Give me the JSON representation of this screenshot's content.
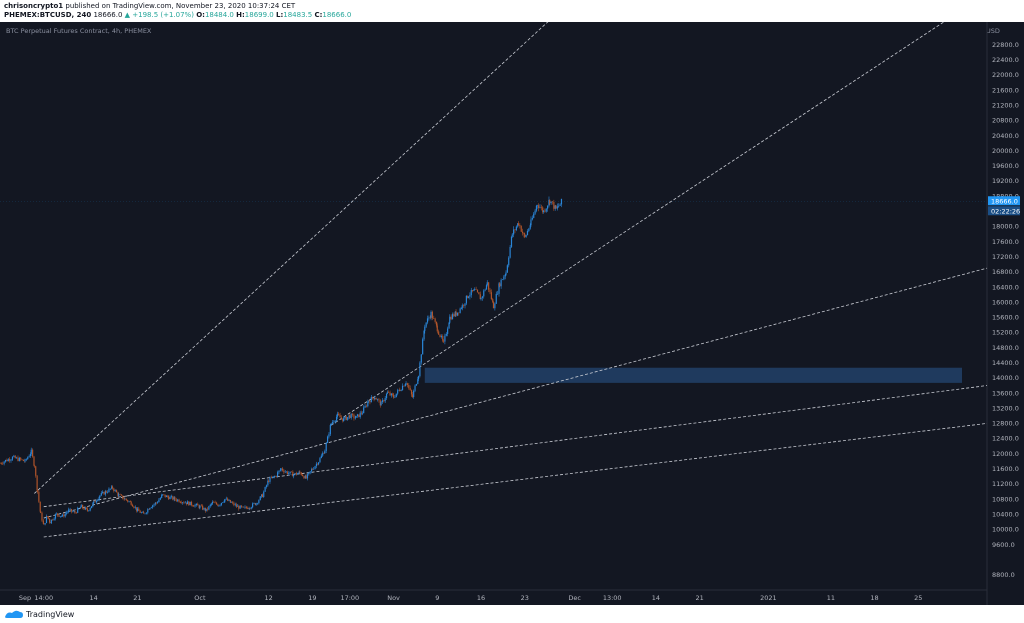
{
  "header": {
    "author": "chrisoncrypto1",
    "published": "published on TradingView.com, November 23, 2020 10:37:24 CET",
    "symbol": "PHEMEX:BTCUSD, 240",
    "last": "18666.0",
    "change": "▲ +198.5 (+1.07%)",
    "open_label": "O:",
    "open": "18484.0",
    "high_label": "H:",
    "high": "18699.0",
    "low_label": "L:",
    "low": "18483.5",
    "close_label": "C:",
    "close": "18666.0"
  },
  "footer": {
    "brand": "TradingView"
  },
  "colors": {
    "background": "#131722",
    "up": "#2a86d8",
    "down": "#b0542a",
    "accent": "#2196f3",
    "zone": "#1f3a5e"
  },
  "chart_data": {
    "type": "candlestick",
    "title": "BTC Perpetual Futures Contract, 4h, PHEMEX",
    "ylabel": "USD",
    "ylim": [
      8400,
      23400
    ],
    "y_ticks": [
      8800,
      9600,
      10000,
      10400,
      10800,
      11200,
      11600,
      12000,
      12400,
      12800,
      13200,
      13600,
      14000,
      14400,
      14800,
      15200,
      15600,
      16000,
      16400,
      16800,
      17200,
      17600,
      18000,
      18400,
      18800,
      19200,
      19600,
      20000,
      20400,
      20800,
      21200,
      21600,
      22000,
      22400,
      22800
    ],
    "x_ticks": [
      {
        "label": "Sep",
        "t": 0
      },
      {
        "label": "14:00",
        "t": 3
      },
      {
        "label": "14",
        "t": 11
      },
      {
        "label": "21",
        "t": 18
      },
      {
        "label": "Oct",
        "t": 28
      },
      {
        "label": "12",
        "t": 39
      },
      {
        "label": "19",
        "t": 46
      },
      {
        "label": "17:00",
        "t": 52
      },
      {
        "label": "Nov",
        "t": 59
      },
      {
        "label": "9",
        "t": 66
      },
      {
        "label": "16",
        "t": 73
      },
      {
        "label": "23",
        "t": 80
      },
      {
        "label": "Dec",
        "t": 88
      },
      {
        "label": "13:00",
        "t": 94
      },
      {
        "label": "14",
        "t": 101
      },
      {
        "label": "21",
        "t": 108
      },
      {
        "label": "2021",
        "t": 119
      },
      {
        "label": "11",
        "t": 129
      },
      {
        "label": "18",
        "t": 136
      },
      {
        "label": "25",
        "t": 143
      }
    ],
    "x_range": [
      -4,
      154
    ],
    "last_price": "18666.0",
    "countdown": "02:22:26",
    "price_path": [
      [
        -4,
        11750
      ],
      [
        -2,
        11900
      ],
      [
        0,
        11800
      ],
      [
        1,
        12050
      ],
      [
        1.5,
        11700
      ],
      [
        2,
        11000
      ],
      [
        2.5,
        10400
      ],
      [
        3,
        10100
      ],
      [
        3.5,
        10350
      ],
      [
        4,
        10200
      ],
      [
        5,
        10400
      ],
      [
        6,
        10350
      ],
      [
        7,
        10500
      ],
      [
        8,
        10450
      ],
      [
        9,
        10600
      ],
      [
        10,
        10500
      ],
      [
        11,
        10700
      ],
      [
        12,
        10900
      ],
      [
        13,
        11000
      ],
      [
        14,
        11100
      ],
      [
        15,
        10900
      ],
      [
        16,
        10800
      ],
      [
        17,
        10700
      ],
      [
        18,
        10500
      ],
      [
        19,
        10400
      ],
      [
        20,
        10600
      ],
      [
        21,
        10700
      ],
      [
        22,
        10900
      ],
      [
        23,
        10850
      ],
      [
        24,
        10800
      ],
      [
        25,
        10750
      ],
      [
        26,
        10700
      ],
      [
        27,
        10650
      ],
      [
        28,
        10600
      ],
      [
        29,
        10500
      ],
      [
        30,
        10700
      ],
      [
        31,
        10650
      ],
      [
        32,
        10800
      ],
      [
        33,
        10700
      ],
      [
        34,
        10600
      ],
      [
        35,
        10550
      ],
      [
        36,
        10600
      ],
      [
        37,
        10700
      ],
      [
        38,
        10900
      ],
      [
        39,
        11300
      ],
      [
        40,
        11400
      ],
      [
        41,
        11600
      ],
      [
        42,
        11500
      ],
      [
        43,
        11450
      ],
      [
        44,
        11500
      ],
      [
        45,
        11350
      ],
      [
        46,
        11600
      ],
      [
        47,
        11800
      ],
      [
        48,
        12100
      ],
      [
        49,
        12800
      ],
      [
        50,
        13000
      ],
      [
        51,
        12900
      ],
      [
        52,
        13000
      ],
      [
        53,
        12950
      ],
      [
        54,
        13100
      ],
      [
        55,
        13400
      ],
      [
        56,
        13500
      ],
      [
        57,
        13300
      ],
      [
        58,
        13600
      ],
      [
        59,
        13500
      ],
      [
        60,
        13700
      ],
      [
        61,
        13900
      ],
      [
        62,
        13500
      ],
      [
        63,
        14100
      ],
      [
        64,
        15400
      ],
      [
        65,
        15700
      ],
      [
        66,
        15300
      ],
      [
        67,
        14900
      ],
      [
        68,
        15600
      ],
      [
        69,
        15700
      ],
      [
        70,
        15900
      ],
      [
        71,
        16200
      ],
      [
        72,
        16300
      ],
      [
        73,
        16100
      ],
      [
        74,
        16500
      ],
      [
        75,
        15900
      ],
      [
        76,
        16500
      ],
      [
        77,
        16800
      ],
      [
        78,
        17800
      ],
      [
        79,
        18100
      ],
      [
        80,
        17700
      ],
      [
        81,
        18100
      ],
      [
        82,
        18600
      ],
      [
        83,
        18400
      ],
      [
        84,
        18700
      ],
      [
        85,
        18450
      ],
      [
        86,
        18666
      ]
    ],
    "trendlines": [
      {
        "x1": 1.5,
        "y1": 10950,
        "x2": 85,
        "y2": 23600
      },
      {
        "x1": 49,
        "y1": 12750,
        "x2": 148,
        "y2": 23500
      },
      {
        "x1": 3,
        "y1": 10300,
        "x2": 154,
        "y2": 16900
      },
      {
        "x1": 3,
        "y1": 10600,
        "x2": 154,
        "y2": 13800
      },
      {
        "x1": 3,
        "y1": 9800,
        "x2": 154,
        "y2": 12800
      }
    ],
    "zone": {
      "x1": 64,
      "x2": 150,
      "y1": 13870,
      "y2": 14270
    }
  }
}
